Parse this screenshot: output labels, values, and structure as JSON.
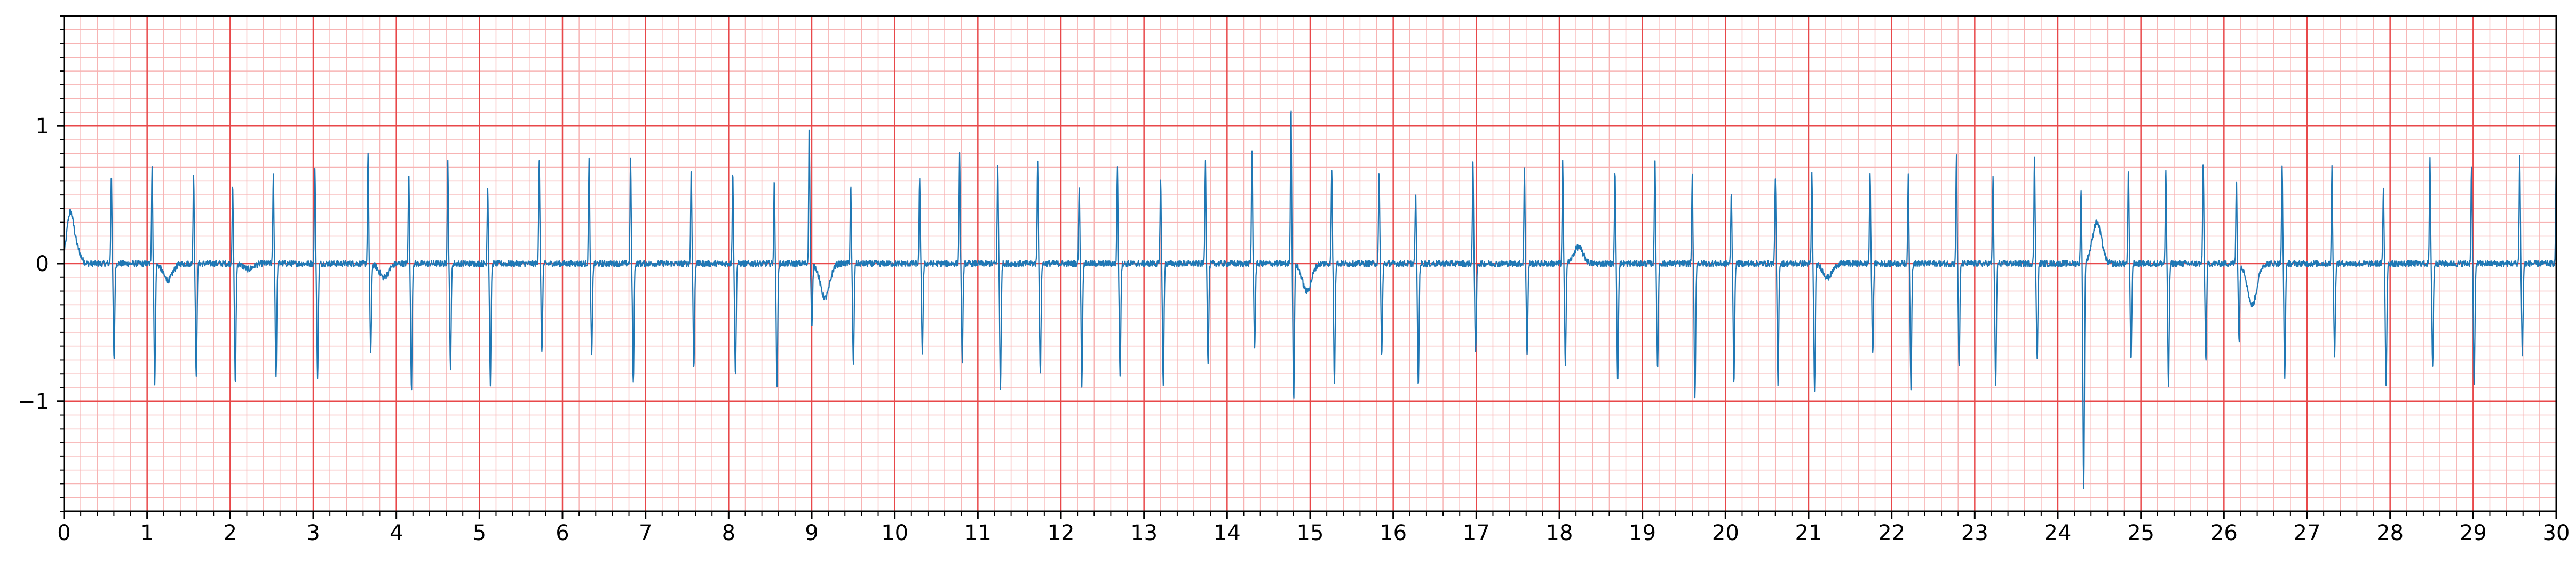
{
  "chart_data": {
    "type": "line",
    "title": "",
    "xlabel": "",
    "ylabel": "",
    "xlim": [
      0,
      30
    ],
    "ylim": [
      -1.8,
      1.8
    ],
    "x_ticks": [
      "0",
      "1",
      "2",
      "3",
      "4",
      "5",
      "6",
      "7",
      "8",
      "9",
      "10",
      "11",
      "12",
      "13",
      "14",
      "15",
      "16",
      "17",
      "18",
      "19",
      "20",
      "21",
      "22",
      "23",
      "24",
      "25",
      "26",
      "27",
      "28",
      "29",
      "30"
    ],
    "y_ticks": [
      {
        "value": 1,
        "label": "1"
      },
      {
        "value": 0,
        "label": "0"
      },
      {
        "value": -1,
        "label": "−1"
      }
    ],
    "grid": true,
    "grid_style": "ECG paper: major lines every 1 s and 1 unit, minor lines every 0.2 s and 0.1 unit",
    "series": [
      {
        "color": "#1f77b4",
        "beats": [
          {
            "t": 0.57,
            "r": 0.66,
            "s": -0.7,
            "t_wave": 0.0
          },
          {
            "t": 1.06,
            "r": 0.71,
            "s": -0.86,
            "t_wave": -0.12
          },
          {
            "t": 1.56,
            "r": 0.65,
            "s": -0.82,
            "t_wave": 0.0
          },
          {
            "t": 2.03,
            "r": 0.56,
            "s": -0.87,
            "t_wave": -0.04
          },
          {
            "t": 2.52,
            "r": 0.64,
            "s": -0.82,
            "t_wave": 0.0
          },
          {
            "t": 3.02,
            "r": 0.71,
            "s": -0.82,
            "t_wave": 0.0
          },
          {
            "t": 3.66,
            "r": 0.82,
            "s": -0.64,
            "t_wave": -0.1
          },
          {
            "t": 4.15,
            "r": 0.66,
            "s": -0.92,
            "t_wave": 0.0
          },
          {
            "t": 4.62,
            "r": 0.74,
            "s": -0.75,
            "t_wave": 0.0
          },
          {
            "t": 5.1,
            "r": 0.56,
            "s": -0.87,
            "t_wave": 0.0
          },
          {
            "t": 5.72,
            "r": 0.76,
            "s": -0.66,
            "t_wave": 0.0
          },
          {
            "t": 6.32,
            "r": 0.78,
            "s": -0.66,
            "t_wave": 0.0
          },
          {
            "t": 6.82,
            "r": 0.76,
            "s": -0.88,
            "t_wave": 0.0
          },
          {
            "t": 7.55,
            "r": 0.7,
            "s": -0.76,
            "t_wave": 0.0
          },
          {
            "t": 8.05,
            "r": 0.66,
            "s": -0.82,
            "t_wave": 0.0
          },
          {
            "t": 8.55,
            "r": 0.6,
            "s": -0.9,
            "t_wave": 0.0
          },
          {
            "t": 8.97,
            "r": 1.0,
            "s": -0.47,
            "t_wave": -0.25
          },
          {
            "t": 9.47,
            "r": 0.57,
            "s": -0.74,
            "t_wave": 0.0
          },
          {
            "t": 10.3,
            "r": 0.62,
            "s": -0.64,
            "t_wave": 0.0
          },
          {
            "t": 10.78,
            "r": 0.79,
            "s": -0.7,
            "t_wave": 0.0
          },
          {
            "t": 11.24,
            "r": 0.72,
            "s": -0.9,
            "t_wave": 0.0
          },
          {
            "t": 11.72,
            "r": 0.73,
            "s": -0.8,
            "t_wave": 0.0
          },
          {
            "t": 12.22,
            "r": 0.56,
            "s": -0.88,
            "t_wave": 0.0
          },
          {
            "t": 12.68,
            "r": 0.7,
            "s": -0.8,
            "t_wave": 0.0
          },
          {
            "t": 13.2,
            "r": 0.63,
            "s": -0.9,
            "t_wave": 0.0
          },
          {
            "t": 13.74,
            "r": 0.74,
            "s": -0.72,
            "t_wave": 0.0
          },
          {
            "t": 14.3,
            "r": 0.83,
            "s": -0.6,
            "t_wave": 0.0
          },
          {
            "t": 14.77,
            "r": 1.15,
            "s": -0.98,
            "t_wave": -0.2
          },
          {
            "t": 15.26,
            "r": 0.69,
            "s": -0.86,
            "t_wave": 0.0
          },
          {
            "t": 15.83,
            "r": 0.67,
            "s": -0.66,
            "t_wave": 0.0
          },
          {
            "t": 16.27,
            "r": 0.51,
            "s": -0.9,
            "t_wave": 0.0
          },
          {
            "t": 16.96,
            "r": 0.73,
            "s": -0.66,
            "t_wave": 0.0
          },
          {
            "t": 17.58,
            "r": 0.68,
            "s": -0.66,
            "t_wave": 0.0
          },
          {
            "t": 18.04,
            "r": 0.74,
            "s": -0.72,
            "t_wave": 0.12
          },
          {
            "t": 18.67,
            "r": 0.67,
            "s": -0.86,
            "t_wave": 0.0
          },
          {
            "t": 19.15,
            "r": 0.8,
            "s": -0.78,
            "t_wave": 0.0
          },
          {
            "t": 19.6,
            "r": 0.63,
            "s": -0.99,
            "t_wave": 0.0
          },
          {
            "t": 20.07,
            "r": 0.52,
            "s": -0.86,
            "t_wave": 0.0
          },
          {
            "t": 20.6,
            "r": 0.6,
            "s": -0.88,
            "t_wave": 0.0
          },
          {
            "t": 21.04,
            "r": 0.65,
            "s": -0.92,
            "t_wave": -0.1
          },
          {
            "t": 21.74,
            "r": 0.66,
            "s": -0.66,
            "t_wave": 0.0
          },
          {
            "t": 22.2,
            "r": 0.63,
            "s": -0.9,
            "t_wave": 0.0
          },
          {
            "t": 22.78,
            "r": 0.8,
            "s": -0.76,
            "t_wave": 0.0
          },
          {
            "t": 23.22,
            "r": 0.63,
            "s": -0.88,
            "t_wave": 0.0
          },
          {
            "t": 23.72,
            "r": 0.77,
            "s": -0.7,
            "t_wave": 0.0
          },
          {
            "t": 24.28,
            "r": 0.55,
            "s": -1.65,
            "t_wave": 0.3
          },
          {
            "t": 24.85,
            "r": 0.68,
            "s": -0.7,
            "t_wave": 0.0
          },
          {
            "t": 25.3,
            "r": 0.68,
            "s": -0.88,
            "t_wave": 0.0
          },
          {
            "t": 25.75,
            "r": 0.74,
            "s": -0.7,
            "t_wave": 0.0
          },
          {
            "t": 26.15,
            "r": 0.63,
            "s": -0.56,
            "t_wave": -0.3
          },
          {
            "t": 26.7,
            "r": 0.71,
            "s": -0.84,
            "t_wave": 0.0
          },
          {
            "t": 27.3,
            "r": 0.7,
            "s": -0.66,
            "t_wave": 0.0
          },
          {
            "t": 27.92,
            "r": 0.55,
            "s": -0.88,
            "t_wave": 0.0
          },
          {
            "t": 28.48,
            "r": 0.75,
            "s": -0.74,
            "t_wave": 0.0
          },
          {
            "t": 28.98,
            "r": 0.72,
            "s": -0.9,
            "t_wave": 0.0
          },
          {
            "t": 29.56,
            "r": 0.8,
            "s": -0.66,
            "t_wave": 0.0
          },
          {
            "t": 30.0,
            "r": 0.76,
            "s": -0.1,
            "t_wave": 0.0
          }
        ]
      }
    ]
  }
}
